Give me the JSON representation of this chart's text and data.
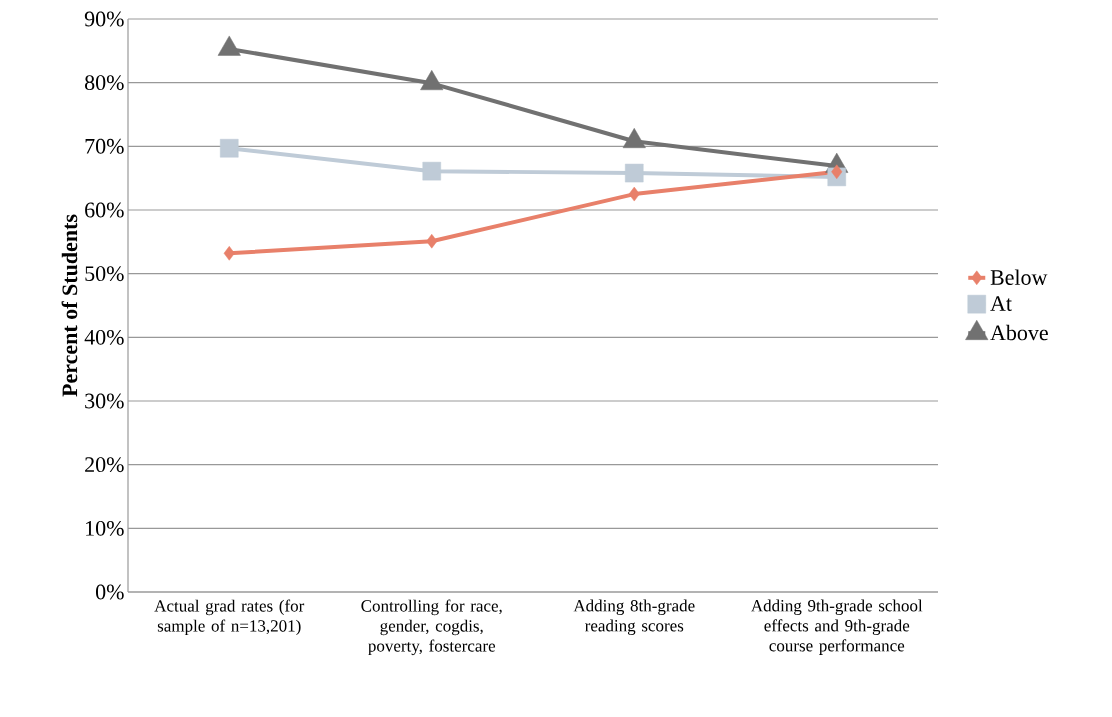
{
  "chart_data": {
    "type": "line",
    "ylabel": "Percent of Students",
    "categories": [
      "Actual grad rates (for sample of n=13,201)",
      "Controlling for race, gender, cogdis, poverty, fostercare",
      "Adding 8th-grade reading scores",
      "Adding 9th-grade school effects and 9th-grade course performance"
    ],
    "series": [
      {
        "name": "Below",
        "color": "#e8806a",
        "marker": "diamond",
        "values": [
          53.2,
          55.1,
          62.5,
          66.0
        ]
      },
      {
        "name": "At",
        "color": "#bfcbd7",
        "marker": "square",
        "values": [
          69.7,
          66.1,
          65.8,
          65.2
        ]
      },
      {
        "name": "Above",
        "color": "#717171",
        "marker": "triangle",
        "values": [
          85.3,
          79.9,
          70.8,
          66.9
        ]
      }
    ],
    "ylim": [
      0,
      90
    ],
    "yticks": [
      {
        "value": 0,
        "label": "0%"
      },
      {
        "value": 10,
        "label": "10%"
      },
      {
        "value": 20,
        "label": "20%"
      },
      {
        "value": 30,
        "label": "30%"
      },
      {
        "value": 40,
        "label": "40%"
      },
      {
        "value": 50,
        "label": "50%"
      },
      {
        "value": 60,
        "label": "60%"
      },
      {
        "value": 70,
        "label": "70%"
      },
      {
        "value": 80,
        "label": "80%"
      },
      {
        "value": 90,
        "label": "90%"
      }
    ],
    "grid": "y",
    "legend": "right",
    "line_style": "solid"
  }
}
